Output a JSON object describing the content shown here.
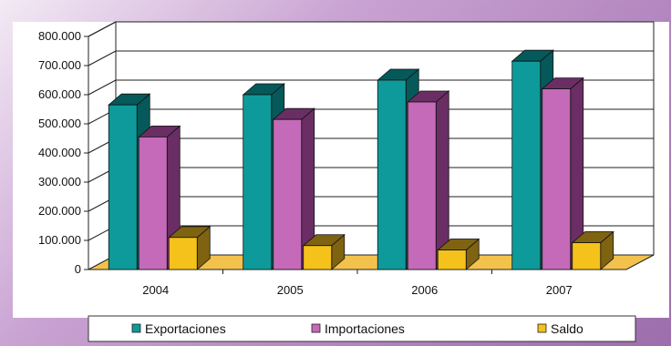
{
  "chart_data": {
    "type": "bar",
    "categories": [
      "2004",
      "2005",
      "2006",
      "2007"
    ],
    "series": [
      {
        "name": "Exportaciones",
        "values": [
          565000,
          600000,
          650000,
          715000
        ]
      },
      {
        "name": "Importaciones",
        "values": [
          455000,
          515000,
          575000,
          620000
        ]
      },
      {
        "name": "Saldo",
        "values": [
          110000,
          82000,
          67000,
          92000
        ]
      }
    ],
    "y_tick_labels": [
      "0",
      "100.000",
      "200.000",
      "300.000",
      "400.000",
      "500.000",
      "600.000",
      "700.000",
      "800.000"
    ],
    "ylim": [
      0,
      800000
    ],
    "grid": true,
    "legend_position": "bottom",
    "colors": [
      "#0e9a9a",
      "#c46ab8",
      "#f5c21b"
    ],
    "shade_colors": [
      "#06595a",
      "#6a2e64",
      "#7f6310"
    ],
    "floor_color": "#f3c24c",
    "title": "",
    "xlabel": "",
    "ylabel": ""
  }
}
